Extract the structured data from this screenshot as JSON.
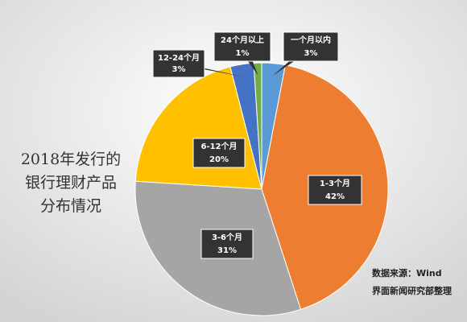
{
  "chart_data": {
    "type": "pie",
    "title": [
      "2018年发行的",
      "银行理财产品",
      "分布情况"
    ],
    "source": [
      "数据来源：Wind",
      "界面新闻研究部整理"
    ],
    "categories": [
      "一个月以内",
      "1-3个月",
      "3-6个月",
      "6-12个月",
      "12-24个月",
      "24个月以上"
    ],
    "values": [
      3,
      42,
      31,
      20,
      3,
      1
    ],
    "value_labels": [
      "3%",
      "42%",
      "31%",
      "20%",
      "3%",
      "1%"
    ],
    "colors": [
      "#5b9bd5",
      "#ed7d31",
      "#a5a5a5",
      "#ffc000",
      "#4472c4",
      "#70ad47"
    ]
  }
}
